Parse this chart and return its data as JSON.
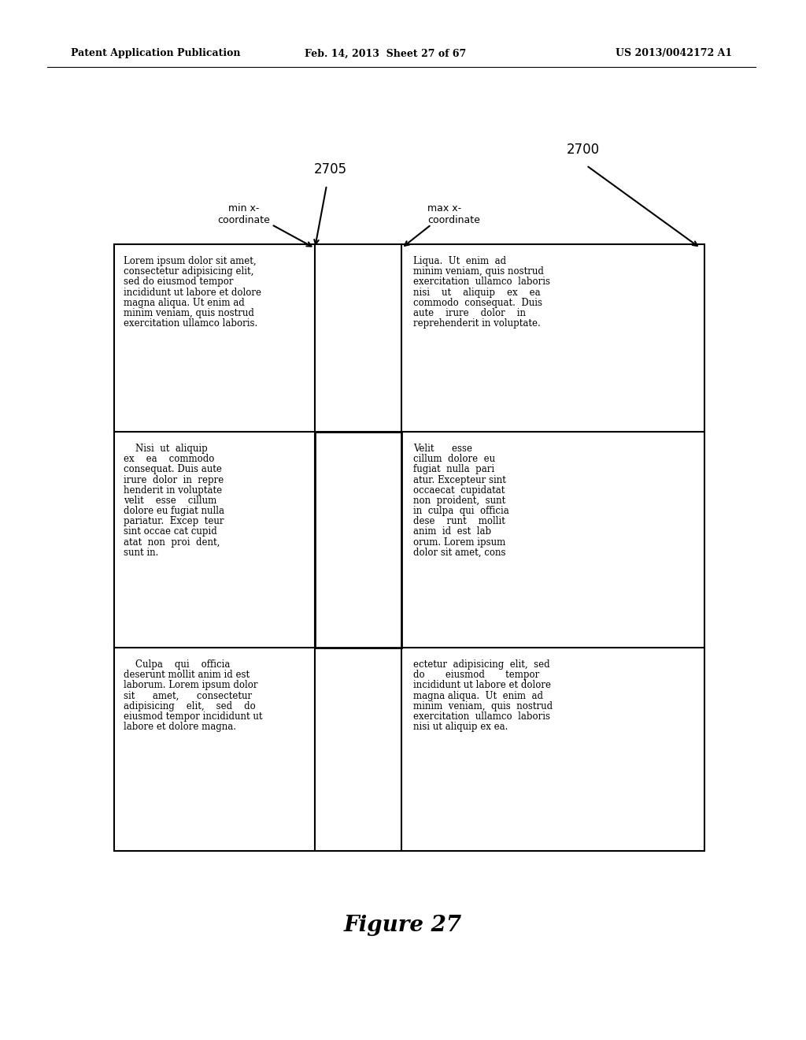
{
  "header_left": "Patent Application Publication",
  "header_mid": "Feb. 14, 2013  Sheet 27 of 67",
  "header_right": "US 2013/0042172 A1",
  "figure_caption": "Figure 27",
  "label_2700": "2700",
  "label_2705": "2705",
  "label_min_x": "min x-\ncoordinate",
  "label_max_x": "max x-\ncoordinate",
  "bg_color": "#ffffff",
  "text_color": "#000000"
}
